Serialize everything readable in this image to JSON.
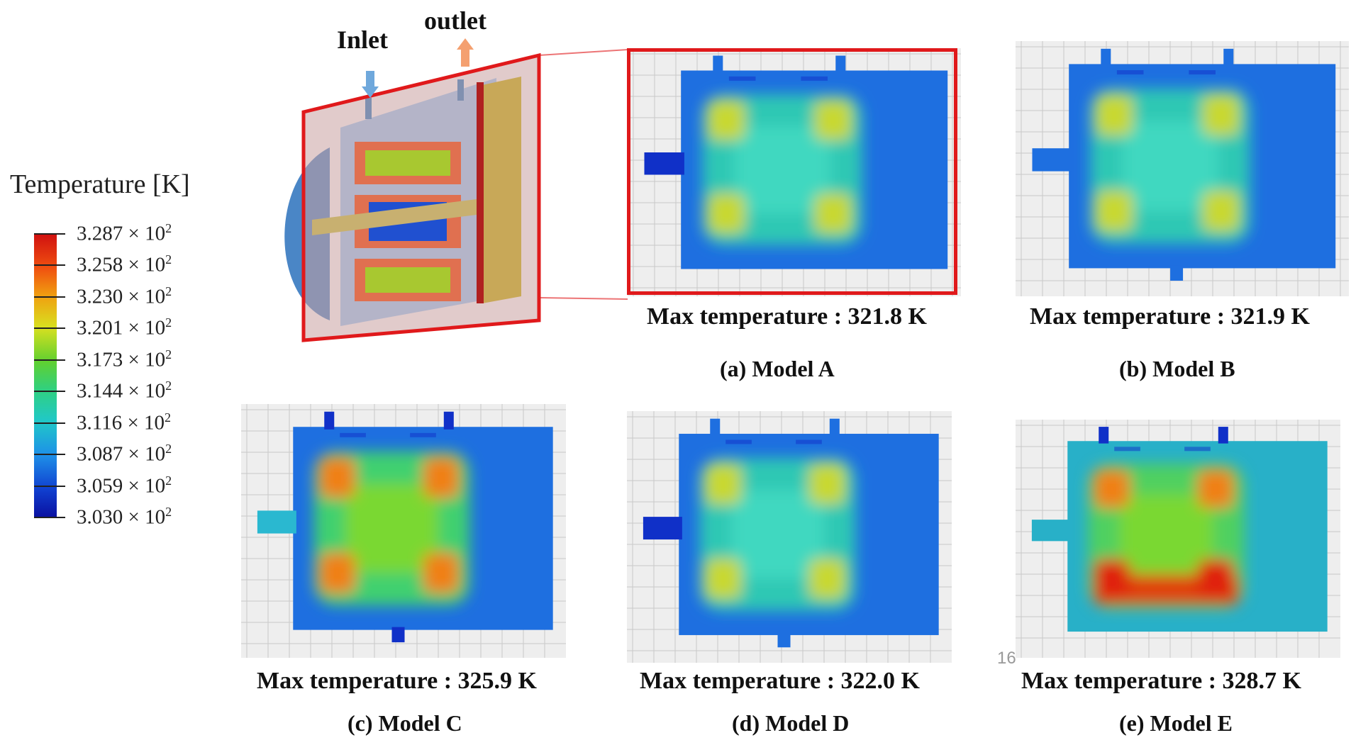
{
  "legend": {
    "title": "Temperature [K]",
    "ticks": [
      {
        "mantissa": "3.287",
        "exp": "2"
      },
      {
        "mantissa": "3.258",
        "exp": "2"
      },
      {
        "mantissa": "3.230",
        "exp": "2"
      },
      {
        "mantissa": "3.201",
        "exp": "2"
      },
      {
        "mantissa": "3.173",
        "exp": "2"
      },
      {
        "mantissa": "3.144",
        "exp": "2"
      },
      {
        "mantissa": "3.116",
        "exp": "2"
      },
      {
        "mantissa": "3.087",
        "exp": "2"
      },
      {
        "mantissa": "3.059",
        "exp": "2"
      },
      {
        "mantissa": "3.030",
        "exp": "2"
      }
    ],
    "times": "×",
    "base": "10"
  },
  "diagram": {
    "inlet_label": "Inlet",
    "outlet_label": "outlet"
  },
  "panels": [
    {
      "max_label": "Max temperature : 321.8 K",
      "caption": "(a) Model A"
    },
    {
      "max_label": "Max temperature : 321.9 K",
      "caption": "(b) Model B"
    },
    {
      "max_label": "Max temperature : 325.9 K",
      "caption": "(c) Model C"
    },
    {
      "max_label": "Max temperature : 322.0 K",
      "caption": "(d) Model D"
    },
    {
      "max_label": "Max temperature : 328.7 K",
      "caption": "(e) Model E"
    }
  ],
  "page_number": "16",
  "colors": {
    "highlight": "#e0191b",
    "cold": "#1030c8",
    "cool": "#1e6fe0",
    "mid": "#2ec8b4",
    "warm": "#7ad830",
    "hot": "#f08018",
    "hottest": "#e02010",
    "grid_bg": "#eeeeee"
  }
}
